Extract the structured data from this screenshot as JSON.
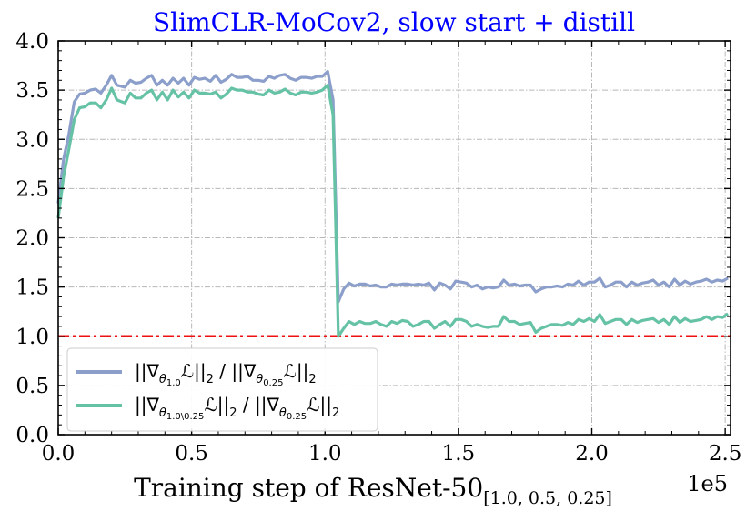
{
  "chart_data": {
    "type": "line",
    "title": "SlimCLR-MoCov2, slow start + distill",
    "title_color": "#0000ff",
    "xlabel_main": "Training step of ResNet-50",
    "xlabel_sub": "[1.0, 0.5, 0.25]",
    "x_offset_label": "1e5",
    "xlim": [
      0,
      2.52
    ],
    "ylim": [
      0,
      4.0
    ],
    "x_ticks": [
      0.0,
      0.5,
      1.0,
      1.5,
      2.0,
      2.5
    ],
    "x_tick_labels": [
      "0.0",
      "0.5",
      "1.0",
      "1.5",
      "2.0",
      "2.5"
    ],
    "y_ticks": [
      0.0,
      0.5,
      1.0,
      1.5,
      2.0,
      2.5,
      3.0,
      3.5,
      4.0
    ],
    "y_tick_labels": [
      "0.0",
      "0.5",
      "1.0",
      "1.5",
      "2.0",
      "2.5",
      "3.0",
      "3.5",
      "4.0"
    ],
    "grid": true,
    "legend_position": "lower-left",
    "reference_line": {
      "y": 1.0,
      "color": "#ee1111",
      "style": "dash-dot"
    },
    "series": [
      {
        "legend": {
          "prefix": "||∇",
          "theta": "θ",
          "sub": "1.0",
          "mid": "ℒ||",
          "two": "2",
          "slash": " / ||∇",
          "sub2": "0.25",
          "mid2": "ℒ||",
          "two2": "2"
        },
        "color": "#8c9fcb",
        "x": [
          0.0,
          0.02,
          0.04,
          0.06,
          0.08,
          0.1,
          0.12,
          0.14,
          0.16,
          0.18,
          0.2,
          0.22,
          0.25,
          0.27,
          0.29,
          0.31,
          0.33,
          0.35,
          0.37,
          0.39,
          0.41,
          0.43,
          0.45,
          0.47,
          0.49,
          0.51,
          0.53,
          0.55,
          0.57,
          0.59,
          0.61,
          0.63,
          0.65,
          0.67,
          0.69,
          0.71,
          0.73,
          0.75,
          0.77,
          0.79,
          0.81,
          0.83,
          0.85,
          0.87,
          0.89,
          0.91,
          0.93,
          0.95,
          0.97,
          0.99,
          1.01,
          1.03,
          1.05,
          1.07,
          1.09,
          1.11,
          1.13,
          1.15,
          1.17,
          1.19,
          1.21,
          1.23,
          1.25,
          1.27,
          1.29,
          1.31,
          1.33,
          1.35,
          1.37,
          1.39,
          1.41,
          1.43,
          1.45,
          1.47,
          1.49,
          1.51,
          1.53,
          1.55,
          1.57,
          1.59,
          1.61,
          1.63,
          1.65,
          1.67,
          1.69,
          1.71,
          1.73,
          1.75,
          1.77,
          1.79,
          1.81,
          1.83,
          1.85,
          1.87,
          1.89,
          1.91,
          1.93,
          1.95,
          1.97,
          1.99,
          2.01,
          2.03,
          2.05,
          2.07,
          2.09,
          2.11,
          2.13,
          2.15,
          2.17,
          2.19,
          2.21,
          2.23,
          2.25,
          2.27,
          2.29,
          2.31,
          2.33,
          2.35,
          2.37,
          2.39,
          2.41,
          2.43,
          2.45,
          2.47,
          2.49,
          2.51
        ],
        "y": [
          2.35,
          2.8,
          3.05,
          3.38,
          3.46,
          3.47,
          3.5,
          3.51,
          3.47,
          3.55,
          3.65,
          3.55,
          3.53,
          3.6,
          3.57,
          3.58,
          3.62,
          3.65,
          3.55,
          3.6,
          3.55,
          3.62,
          3.57,
          3.62,
          3.55,
          3.63,
          3.61,
          3.62,
          3.59,
          3.65,
          3.58,
          3.61,
          3.66,
          3.63,
          3.63,
          3.64,
          3.6,
          3.6,
          3.59,
          3.64,
          3.62,
          3.65,
          3.66,
          3.62,
          3.6,
          3.63,
          3.63,
          3.62,
          3.64,
          3.64,
          3.69,
          3.4,
          1.35,
          1.48,
          1.54,
          1.51,
          1.53,
          1.53,
          1.51,
          1.52,
          1.5,
          1.5,
          1.53,
          1.52,
          1.53,
          1.53,
          1.52,
          1.53,
          1.52,
          1.54,
          1.47,
          1.54,
          1.52,
          1.48,
          1.56,
          1.55,
          1.54,
          1.5,
          1.52,
          1.48,
          1.5,
          1.49,
          1.5,
          1.57,
          1.52,
          1.53,
          1.51,
          1.52,
          1.52,
          1.45,
          1.48,
          1.5,
          1.5,
          1.51,
          1.5,
          1.53,
          1.52,
          1.56,
          1.52,
          1.55,
          1.55,
          1.59,
          1.5,
          1.52,
          1.55,
          1.55,
          1.5,
          1.55,
          1.52,
          1.54,
          1.55,
          1.57,
          1.52,
          1.55,
          1.5,
          1.58,
          1.52,
          1.56,
          1.53,
          1.55,
          1.56,
          1.58,
          1.55,
          1.57,
          1.56,
          1.59
        ]
      },
      {
        "legend": {
          "prefix": "||∇",
          "theta": "θ",
          "sub": "1.0\\0.25",
          "mid": "ℒ||",
          "two": "2",
          "slash": " / ||∇",
          "sub2": "0.25",
          "mid2": "ℒ||",
          "two2": "2"
        },
        "color": "#66c2a5",
        "x": [
          0.0,
          0.02,
          0.04,
          0.06,
          0.08,
          0.1,
          0.12,
          0.14,
          0.16,
          0.18,
          0.2,
          0.22,
          0.25,
          0.27,
          0.29,
          0.31,
          0.33,
          0.35,
          0.37,
          0.39,
          0.41,
          0.43,
          0.45,
          0.47,
          0.49,
          0.51,
          0.53,
          0.55,
          0.57,
          0.59,
          0.61,
          0.63,
          0.65,
          0.67,
          0.69,
          0.71,
          0.73,
          0.75,
          0.77,
          0.79,
          0.81,
          0.83,
          0.85,
          0.87,
          0.89,
          0.91,
          0.93,
          0.95,
          0.97,
          0.99,
          1.01,
          1.03,
          1.05,
          1.07,
          1.09,
          1.11,
          1.13,
          1.15,
          1.17,
          1.19,
          1.21,
          1.23,
          1.25,
          1.27,
          1.29,
          1.31,
          1.33,
          1.35,
          1.37,
          1.39,
          1.41,
          1.43,
          1.45,
          1.47,
          1.49,
          1.51,
          1.53,
          1.55,
          1.57,
          1.59,
          1.61,
          1.63,
          1.65,
          1.67,
          1.69,
          1.71,
          1.73,
          1.75,
          1.77,
          1.79,
          1.81,
          1.83,
          1.85,
          1.87,
          1.89,
          1.91,
          1.93,
          1.95,
          1.97,
          1.99,
          2.01,
          2.03,
          2.05,
          2.07,
          2.09,
          2.11,
          2.13,
          2.15,
          2.17,
          2.19,
          2.21,
          2.23,
          2.25,
          2.27,
          2.29,
          2.31,
          2.33,
          2.35,
          2.37,
          2.39,
          2.41,
          2.43,
          2.45,
          2.47,
          2.49,
          2.51
        ],
        "y": [
          2.2,
          2.62,
          2.9,
          3.2,
          3.32,
          3.33,
          3.37,
          3.37,
          3.32,
          3.4,
          3.52,
          3.4,
          3.37,
          3.47,
          3.42,
          3.42,
          3.47,
          3.5,
          3.4,
          3.48,
          3.4,
          3.5,
          3.43,
          3.48,
          3.42,
          3.5,
          3.47,
          3.47,
          3.46,
          3.48,
          3.42,
          3.46,
          3.52,
          3.5,
          3.5,
          3.48,
          3.48,
          3.46,
          3.45,
          3.5,
          3.47,
          3.48,
          3.51,
          3.47,
          3.45,
          3.48,
          3.48,
          3.47,
          3.48,
          3.5,
          3.55,
          3.25,
          1.0,
          1.08,
          1.15,
          1.12,
          1.15,
          1.13,
          1.13,
          1.15,
          1.12,
          1.1,
          1.15,
          1.13,
          1.16,
          1.15,
          1.1,
          1.12,
          1.15,
          1.15,
          1.08,
          1.12,
          1.15,
          1.1,
          1.17,
          1.17,
          1.15,
          1.1,
          1.12,
          1.1,
          1.09,
          1.1,
          1.1,
          1.2,
          1.15,
          1.15,
          1.12,
          1.13,
          1.14,
          1.04,
          1.08,
          1.1,
          1.12,
          1.12,
          1.11,
          1.14,
          1.12,
          1.17,
          1.15,
          1.18,
          1.15,
          1.22,
          1.13,
          1.15,
          1.17,
          1.17,
          1.12,
          1.17,
          1.14,
          1.16,
          1.17,
          1.18,
          1.14,
          1.17,
          1.12,
          1.2,
          1.14,
          1.18,
          1.15,
          1.16,
          1.17,
          1.2,
          1.17,
          1.2,
          1.19,
          1.23
        ]
      }
    ]
  }
}
